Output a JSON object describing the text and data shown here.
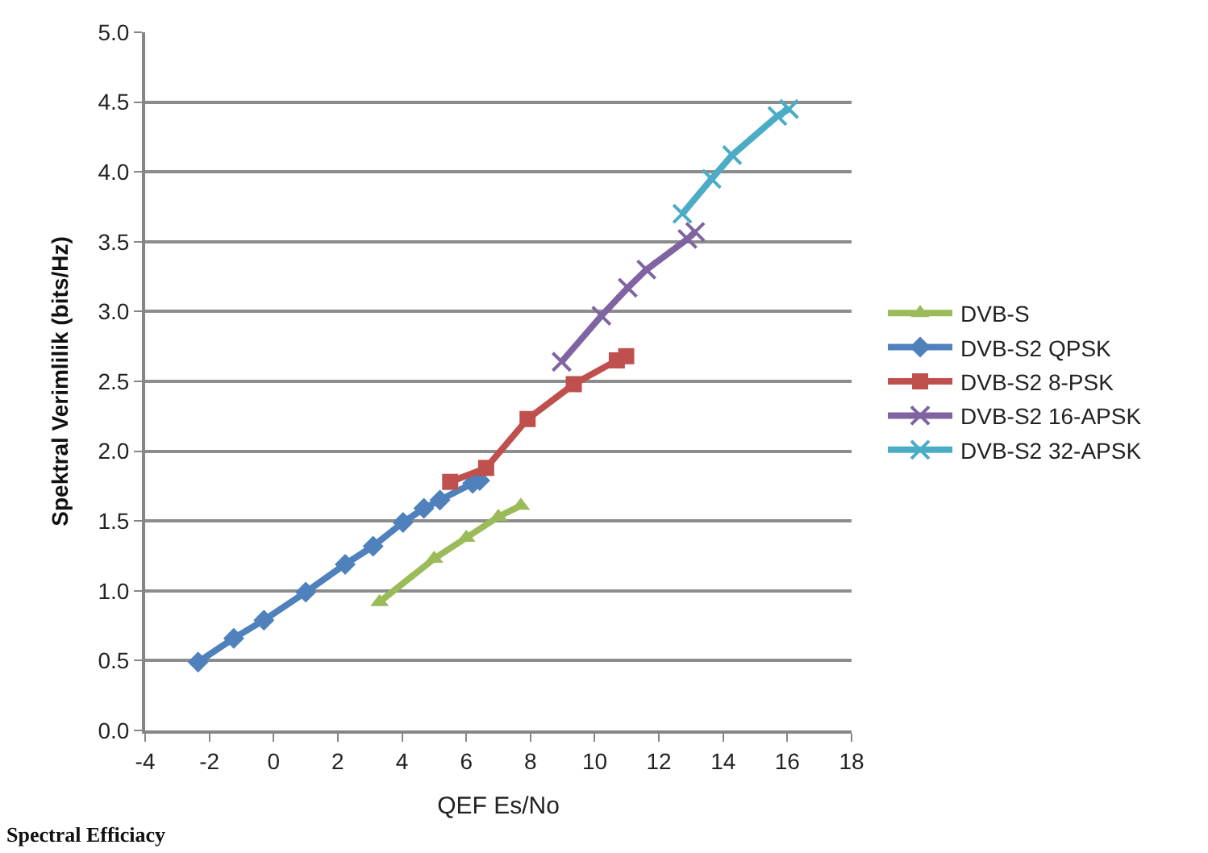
{
  "chart_data": {
    "type": "line",
    "ylabel": "Spektral Verimlilik (bits/Hz)",
    "xlabel": "QEF Es/No",
    "annotations": [
      "Spectral Efficiacy"
    ],
    "xlim": [
      -4,
      18
    ],
    "xticks": [
      -4,
      -2,
      0,
      2,
      4,
      6,
      8,
      10,
      12,
      14,
      16,
      18
    ],
    "ylim": [
      0,
      5
    ],
    "yticks": [
      {
        "value": 0,
        "label": "0.0"
      },
      {
        "value": 0.5,
        "label": "0.5"
      },
      {
        "value": 1,
        "label": "1.0"
      },
      {
        "value": 1.5,
        "label": "1.5"
      },
      {
        "value": 2,
        "label": "2.0"
      },
      {
        "value": 2.5,
        "label": "2.5"
      },
      {
        "value": 3,
        "label": "3.0"
      },
      {
        "value": 3.5,
        "label": "3.5"
      },
      {
        "value": 4,
        "label": "4.0"
      },
      {
        "value": 4.5,
        "label": "4.5"
      },
      {
        "value": 5,
        "label": "5.0"
      }
    ],
    "grid": "y",
    "legend": "right",
    "series": [
      {
        "name": "DVB-S",
        "color": "#9bbb59",
        "marker": "triangle",
        "x": [
          3.3,
          5.0,
          6.0,
          7.0,
          7.7
        ],
        "values": [
          0.92,
          1.23,
          1.38,
          1.53,
          1.61
        ]
      },
      {
        "name": "DVB-S2 QPSK",
        "color": "#4f81bd",
        "marker": "diamond",
        "x": [
          -2.35,
          -1.24,
          -0.3,
          1.0,
          2.23,
          3.1,
          4.03,
          4.68,
          5.18,
          6.2,
          6.42
        ],
        "values": [
          0.49,
          0.66,
          0.79,
          0.99,
          1.19,
          1.32,
          1.49,
          1.59,
          1.65,
          1.77,
          1.79
        ]
      },
      {
        "name": "DVB-S2 8-PSK",
        "color": "#c0504d",
        "marker": "square",
        "x": [
          5.5,
          6.62,
          7.91,
          9.35,
          10.69,
          10.98
        ],
        "values": [
          1.78,
          1.88,
          2.23,
          2.48,
          2.65,
          2.68
        ]
      },
      {
        "name": "DVB-S2 16-APSK",
        "color": "#8064a2",
        "marker": "cross",
        "x": [
          8.97,
          10.21,
          11.03,
          11.61,
          12.89,
          13.13
        ],
        "values": [
          2.64,
          2.97,
          3.17,
          3.3,
          3.52,
          3.57
        ]
      },
      {
        "name": "DVB-S2 32-APSK",
        "color": "#4bacc6",
        "marker": "cross",
        "x": [
          12.73,
          13.64,
          14.28,
          15.69,
          16.05
        ],
        "values": [
          3.7,
          3.95,
          4.12,
          4.4,
          4.45
        ]
      }
    ]
  }
}
